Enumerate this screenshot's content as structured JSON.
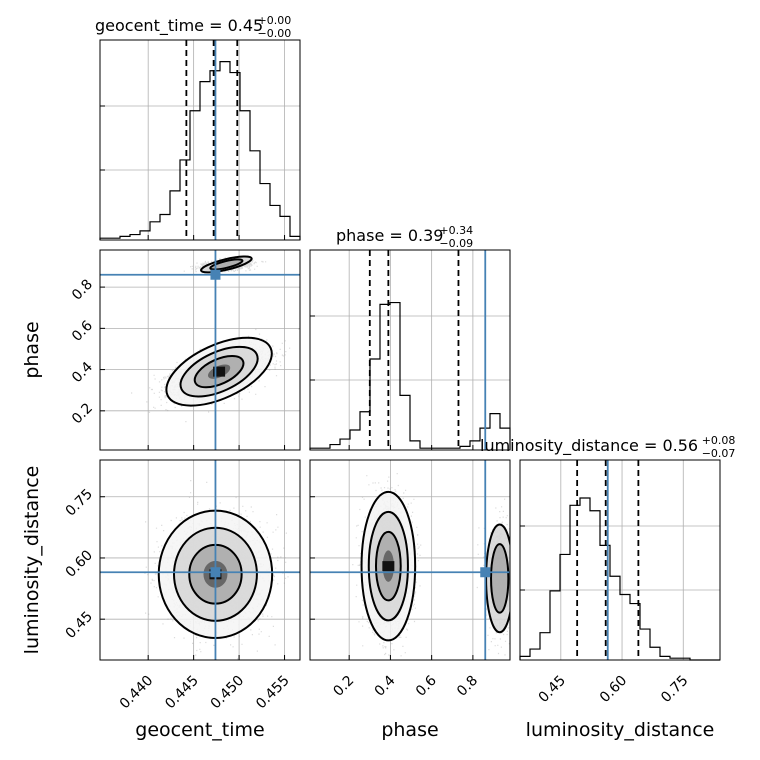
{
  "chart_data": {
    "type": "corner",
    "parameters": [
      "geocent_time",
      "phase",
      "luminosity_distance"
    ],
    "panel_titles": [
      {
        "label": "geocent_time = 0.45",
        "sup": "+0.00",
        "sub": "−0.00"
      },
      {
        "label": "phase = 0.39",
        "sup": "+0.34",
        "sub": "−0.09"
      },
      {
        "label": "luminosity_distance = 0.56",
        "sup": "+0.08",
        "sub": "−0.07"
      }
    ],
    "truths": {
      "geocent_time": 0.4474,
      "phase": 0.86,
      "luminosity_distance": 0.565
    },
    "quantiles": {
      "geocent_time": [
        0.4442,
        0.4472,
        0.4498
      ],
      "phase": [
        0.3,
        0.39,
        0.73
      ],
      "luminosity_distance": [
        0.49,
        0.56,
        0.64
      ]
    },
    "ranges": {
      "geocent_time": [
        0.4347,
        0.4567
      ],
      "phase": [
        0.01,
        0.98
      ],
      "luminosity_distance": [
        0.35,
        0.84
      ]
    },
    "axis_ticks": {
      "geocent_time": [
        "0.440",
        "0.445",
        "0.450",
        "0.455"
      ],
      "phase": [
        "0.2",
        "0.4",
        "0.6",
        "0.8"
      ],
      "luminosity_distance": [
        "0.45",
        "0.60",
        "0.75"
      ]
    },
    "axis_labels": {
      "geocent_time": "geocent_time",
      "phase": "phase",
      "luminosity_distance": "luminosity_distance"
    },
    "histograms": {
      "geocent_time": {
        "bins": 20,
        "counts": [
          0.01,
          0.01,
          0.02,
          0.03,
          0.05,
          0.1,
          0.14,
          0.27,
          0.44,
          0.71,
          0.87,
          0.93,
          0.98,
          0.92,
          0.71,
          0.49,
          0.31,
          0.19,
          0.13,
          0.02
        ]
      },
      "phase": {
        "bins": 20,
        "counts": [
          0.01,
          0.01,
          0.03,
          0.06,
          0.11,
          0.21,
          0.5,
          0.8,
          0.81,
          0.3,
          0.05,
          0.01,
          0.01,
          0.01,
          0.01,
          0.02,
          0.05,
          0.12,
          0.2,
          0.12
        ]
      },
      "luminosity_distance": {
        "bins": 20,
        "counts": [
          0.02,
          0.06,
          0.15,
          0.38,
          0.58,
          0.85,
          0.89,
          0.82,
          0.63,
          0.46,
          0.36,
          0.31,
          0.17,
          0.07,
          0.02,
          0.01,
          0.01,
          0,
          0,
          0
        ]
      }
    },
    "joint_contours": {
      "phase_vs_geocent_time": {
        "modes": [
          {
            "x": 0.4478,
            "y": 0.39,
            "sx": 0.0024,
            "sy": 0.055,
            "rho": 0.55
          },
          {
            "x": 0.4486,
            "y": 0.91,
            "sx": 0.0013,
            "sy": 0.012,
            "rho": 0.3
          }
        ]
      },
      "luminosity_distance_vs_geocent_time": {
        "modes": [
          {
            "x": 0.4474,
            "y": 0.56,
            "sx": 0.0024,
            "sy": 0.06,
            "rho": 0.0
          }
        ]
      },
      "luminosity_distance_vs_phase": {
        "modes": [
          {
            "x": 0.39,
            "y": 0.58,
            "sx": 0.05,
            "sy": 0.07,
            "rho": 0.0
          },
          {
            "x": 0.93,
            "y": 0.55,
            "sx": 0.03,
            "sy": 0.06,
            "rho": 0.0
          }
        ]
      }
    }
  }
}
